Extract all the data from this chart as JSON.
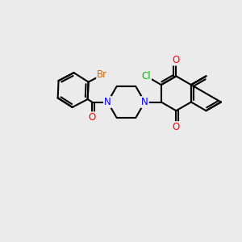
{
  "background_color": "#ebebeb",
  "bond_color": "#000000",
  "bond_width": 1.5,
  "atom_colors": {
    "O": "#ff0000",
    "N": "#0000ff",
    "Cl": "#00bb00",
    "Br": "#cc6600",
    "C": "#000000"
  },
  "font_size": 8.5
}
